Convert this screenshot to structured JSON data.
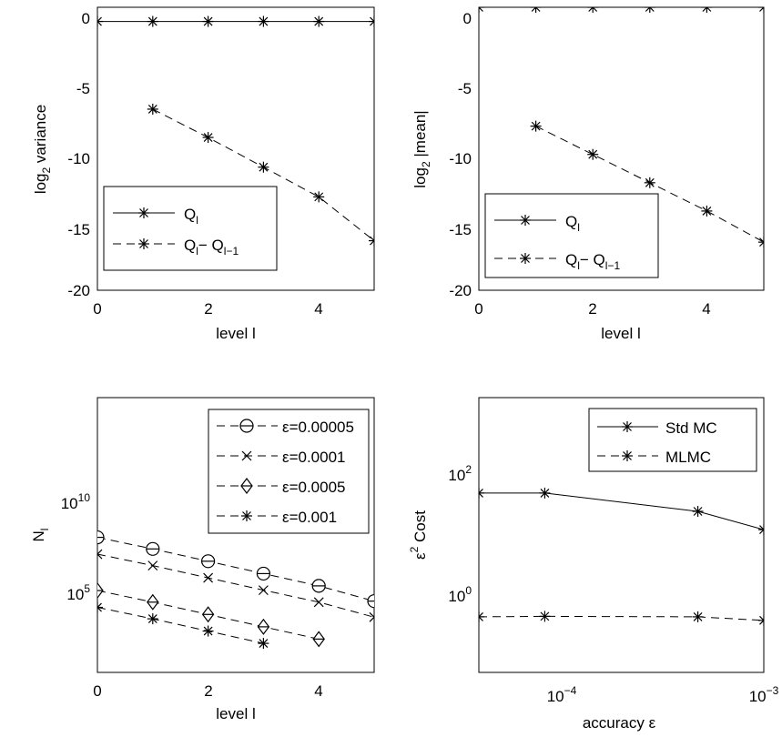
{
  "chart_data": [
    {
      "type": "line",
      "xlabel": "level l",
      "ylabel": "log2 variance",
      "xlim": [
        0,
        5
      ],
      "ylim": [
        -20,
        0
      ],
      "x_ticks": [
        "0",
        "2",
        "4"
      ],
      "y_ticks": [
        "0",
        "-5",
        "-10",
        "-15",
        "-20"
      ],
      "legend_position": "bottom-left",
      "series": [
        {
          "name": "Q_l",
          "style": "solid",
          "x": [
            0,
            1,
            2,
            3,
            4,
            5
          ],
          "values": [
            -1.0,
            -1.0,
            -1.0,
            -1.0,
            -1.0,
            -1.0
          ]
        },
        {
          "name": "Q_l − Q_l−1",
          "style": "dashed",
          "x": [
            1,
            2,
            3,
            4,
            5
          ],
          "values": [
            -7.2,
            -9.2,
            -11.3,
            -13.4,
            -16.5
          ]
        }
      ]
    },
    {
      "type": "line",
      "xlabel": "level l",
      "ylabel": "log2 |mean|",
      "xlim": [
        0,
        5
      ],
      "ylim": [
        -20,
        0
      ],
      "x_ticks": [
        "0",
        "2",
        "4"
      ],
      "y_ticks": [
        "0",
        "-5",
        "-10",
        "-15",
        "-20"
      ],
      "legend_position": "bottom-left",
      "series": [
        {
          "name": "Q_l",
          "style": "solid",
          "x": [
            0,
            1,
            2,
            3,
            4,
            5
          ],
          "values": [
            0,
            0,
            0,
            0,
            0,
            0
          ]
        },
        {
          "name": "Q_l − Q_l−1",
          "style": "dashed",
          "x": [
            1,
            2,
            3,
            4,
            5
          ],
          "values": [
            -8.4,
            -10.4,
            -12.4,
            -14.4,
            -16.6
          ]
        }
      ]
    },
    {
      "type": "line",
      "xlabel": "level l",
      "ylabel": "N_l",
      "y_scale": "log",
      "xlim": [
        0,
        5
      ],
      "x_ticks": [
        "0",
        "2",
        "4"
      ],
      "y_ticks": [
        "10^5",
        "10^10"
      ],
      "legend_position": "top-right",
      "series": [
        {
          "name": "ε=0.00005",
          "marker": "circle",
          "style": "dashed",
          "x": [
            0,
            1,
            2,
            3,
            4,
            5
          ],
          "values": [
            30000000.0,
            11000000.0,
            3800000.0,
            1300000.0,
            450000.0,
            120000.0
          ]
        },
        {
          "name": "ε=0.0001",
          "marker": "x",
          "style": "dashed",
          "x": [
            0,
            1,
            2,
            3,
            4,
            5
          ],
          "values": [
            7000000.0,
            2600000.0,
            900000.0,
            310000.0,
            110000.0,
            30000.0
          ]
        },
        {
          "name": "ε=0.0005",
          "marker": "diamond",
          "style": "dashed",
          "x": [
            0,
            1,
            2,
            3,
            4
          ],
          "values": [
            300000.0,
            110000.0,
            38000.0,
            13000.0,
            4500.0
          ]
        },
        {
          "name": "ε=0.001",
          "marker": "star",
          "style": "dashed",
          "x": [
            0,
            1,
            2,
            3
          ],
          "values": [
            70000.0,
            26000.0,
            9000.0,
            3100.0
          ]
        }
      ]
    },
    {
      "type": "line",
      "xlabel": "accuracy ε",
      "ylabel": "ε² Cost",
      "x_scale": "log",
      "y_scale": "log",
      "xlim": [
        5e-05,
        0.001
      ],
      "x_ticks": [
        "10^-4",
        "10^-3"
      ],
      "y_ticks": [
        "10^0",
        "10^2"
      ],
      "legend_position": "top-right",
      "series": [
        {
          "name": "Std MC",
          "style": "solid",
          "x": [
            5e-05,
            0.0001,
            0.0005,
            0.001
          ],
          "values": [
            60,
            60,
            30,
            15
          ]
        },
        {
          "name": "MLMC",
          "style": "dashed",
          "x": [
            5e-05,
            0.0001,
            0.0005,
            0.001
          ],
          "values": [
            0.55,
            0.56,
            0.55,
            0.48
          ]
        }
      ]
    }
  ]
}
